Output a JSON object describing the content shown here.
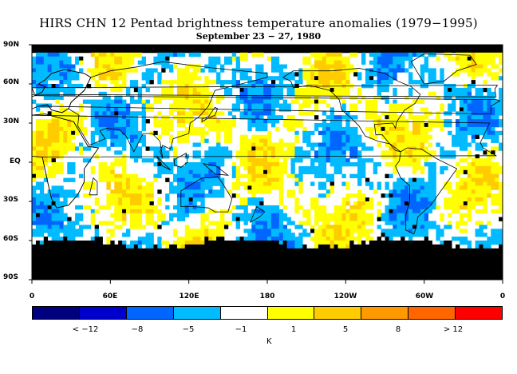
{
  "title": "HIRS CHN 12 Pentad brightness temperature anomalies (1979−1995)",
  "subtitle": "September 23 − 27, 1980",
  "lat_labels": [
    "90N",
    "60N",
    "30N",
    "EQ",
    "30S",
    "60S",
    "90S"
  ],
  "lon_labels": [
    "0",
    "60E",
    "120E",
    "180",
    "120W",
    "60W",
    "0"
  ],
  "colorbar": {
    "colors": [
      "#00007f",
      "#0000cc",
      "#0066ff",
      "#00bbff",
      "#ffffff",
      "#ffff00",
      "#ffcc00",
      "#ff9900",
      "#ff6600",
      "#ff0000"
    ],
    "labels": [
      "< −12",
      "−8",
      "−5",
      "−1",
      "1",
      "5",
      "8",
      "> 12"
    ],
    "unit": "K"
  },
  "missing_color": "#000000",
  "land_outline_color": "#000000"
}
